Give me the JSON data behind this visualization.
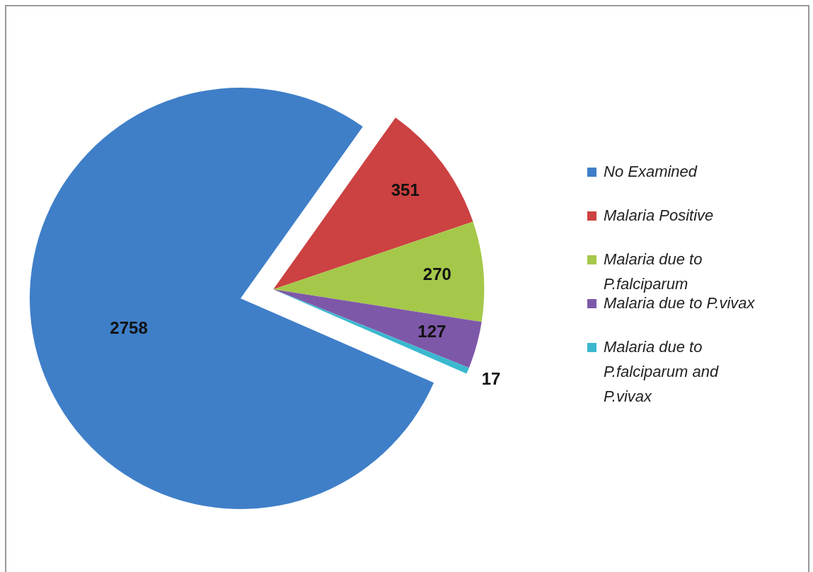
{
  "chart_data": {
    "type": "pie",
    "categories": [
      "No Examined",
      "Malaria Positive",
      "Malaria due to P.falciparum",
      "Malaria due to P.vivax",
      "Malaria due to P.falciparum and P.vivax"
    ],
    "values": [
      2758,
      351,
      270,
      127,
      17
    ],
    "colors": [
      "#3f7fc8",
      "#cc4141",
      "#a5c84a",
      "#7e58a8",
      "#3bb8cf"
    ],
    "data_labels": true,
    "legend": "right"
  }
}
